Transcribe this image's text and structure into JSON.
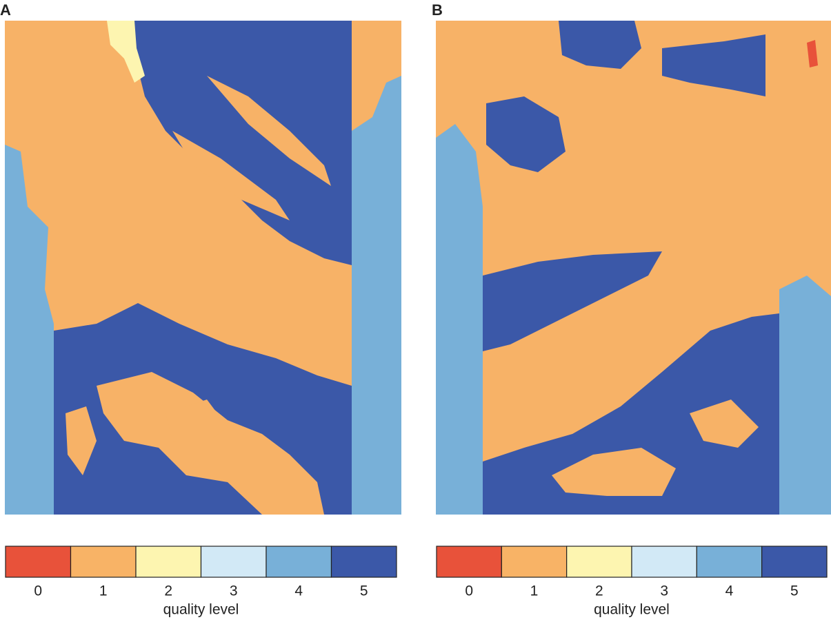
{
  "panels": [
    {
      "label": "A",
      "colorbar": {
        "ticks": [
          0,
          1,
          2,
          3,
          4,
          5
        ],
        "colors": [
          "#e8523a",
          "#f8b366",
          "#fdf5b0",
          "#d2e9f6",
          "#78b0d8",
          "#3b58a8"
        ],
        "label": "quality level"
      }
    },
    {
      "label": "B",
      "colorbar": {
        "ticks": [
          0,
          1,
          2,
          3,
          4,
          5
        ],
        "colors": [
          "#e8523a",
          "#f8b366",
          "#fdf5b0",
          "#d2e9f6",
          "#78b0d8",
          "#3b58a8"
        ],
        "label": "quality level"
      }
    }
  ]
}
